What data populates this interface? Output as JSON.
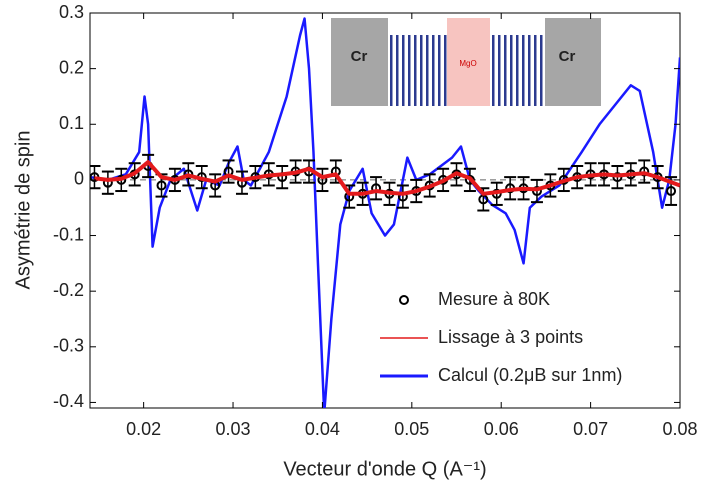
{
  "chart_data": {
    "type": "line",
    "xlabel": "Vecteur d'onde Q (A⁻¹)",
    "ylabel": "Asymétrie de spin",
    "xlim": [
      0.014,
      0.08
    ],
    "ylim": [
      -0.41,
      0.3
    ],
    "xticks": [
      0.02,
      0.03,
      0.04,
      0.05,
      0.06,
      0.07,
      0.08
    ],
    "yticks": [
      0.3,
      0.2,
      0.1,
      0,
      -0.1,
      -0.2,
      -0.3,
      -0.4
    ],
    "hline": 0,
    "legend": "lower right",
    "inset_labels": [
      "Cr",
      "MgO",
      "Cr"
    ],
    "series": [
      {
        "name": "Mesure à 80K",
        "kind": "errorbar",
        "color": "#000000",
        "x": [
          0.0145,
          0.016,
          0.0175,
          0.019,
          0.0205,
          0.022,
          0.0235,
          0.025,
          0.0265,
          0.028,
          0.0295,
          0.031,
          0.0325,
          0.034,
          0.0355,
          0.037,
          0.0385,
          0.04,
          0.0415,
          0.043,
          0.0445,
          0.046,
          0.0475,
          0.049,
          0.0505,
          0.052,
          0.0535,
          0.055,
          0.0565,
          0.058,
          0.0595,
          0.061,
          0.0625,
          0.064,
          0.0655,
          0.067,
          0.0685,
          0.07,
          0.0715,
          0.073,
          0.0745,
          0.076,
          0.0775,
          0.079
        ],
        "values": [
          0.005,
          -0.005,
          0.0,
          0.01,
          0.025,
          -0.01,
          0.0,
          0.01,
          0.005,
          -0.01,
          0.015,
          -0.005,
          0.005,
          0.01,
          0.005,
          0.015,
          0.015,
          0.0,
          0.015,
          -0.03,
          -0.025,
          -0.015,
          -0.025,
          -0.03,
          -0.02,
          -0.01,
          0.0,
          0.01,
          0.0,
          -0.035,
          -0.025,
          -0.015,
          -0.015,
          -0.02,
          -0.01,
          0.0,
          0.005,
          0.01,
          0.01,
          0.005,
          0.01,
          0.015,
          0.005,
          -0.02
        ],
        "errors": [
          0.02,
          0.02,
          0.02,
          0.02,
          0.02,
          0.02,
          0.02,
          0.02,
          0.02,
          0.02,
          0.02,
          0.02,
          0.02,
          0.02,
          0.02,
          0.02,
          0.02,
          0.02,
          0.02,
          0.02,
          0.02,
          0.02,
          0.02,
          0.02,
          0.02,
          0.02,
          0.02,
          0.02,
          0.02,
          0.02,
          0.02,
          0.02,
          0.02,
          0.02,
          0.02,
          0.02,
          0.02,
          0.02,
          0.02,
          0.02,
          0.02,
          0.02,
          0.02,
          0.025
        ]
      },
      {
        "name": "Lissage à 3 points",
        "kind": "line",
        "color": "#e41a1c",
        "x": [
          0.0145,
          0.016,
          0.0175,
          0.019,
          0.0205,
          0.022,
          0.0235,
          0.025,
          0.0265,
          0.028,
          0.0295,
          0.031,
          0.0325,
          0.034,
          0.0355,
          0.037,
          0.0385,
          0.04,
          0.0415,
          0.043,
          0.0445,
          0.046,
          0.0475,
          0.049,
          0.0505,
          0.052,
          0.0535,
          0.055,
          0.0565,
          0.058,
          0.0595,
          0.061,
          0.0625,
          0.064,
          0.0655,
          0.067,
          0.0685,
          0.07,
          0.0715,
          0.073,
          0.0745,
          0.076,
          0.0775,
          0.08
        ],
        "values": [
          0.003,
          0.0,
          0.002,
          0.012,
          0.032,
          0.005,
          0.0,
          0.008,
          0.002,
          -0.003,
          0.008,
          0.0,
          0.004,
          0.008,
          0.01,
          0.013,
          0.02,
          0.005,
          0.01,
          -0.025,
          -0.025,
          -0.02,
          -0.023,
          -0.025,
          -0.02,
          -0.012,
          -0.002,
          0.012,
          0.003,
          -0.025,
          -0.022,
          -0.018,
          -0.016,
          -0.017,
          -0.01,
          -0.002,
          0.005,
          0.008,
          0.01,
          0.008,
          0.01,
          0.012,
          0.005,
          -0.01
        ]
      },
      {
        "name": "Calcul (0.2μB sur 1nm)",
        "kind": "line",
        "color": "#1a1aff",
        "x": [
          0.014,
          0.016,
          0.018,
          0.0195,
          0.0201,
          0.0205,
          0.021,
          0.0218,
          0.023,
          0.0245,
          0.0255,
          0.026,
          0.027,
          0.0285,
          0.0295,
          0.0305,
          0.0312,
          0.032,
          0.034,
          0.036,
          0.0375,
          0.038,
          0.0385,
          0.039,
          0.0395,
          0.0402,
          0.041,
          0.042,
          0.043,
          0.0445,
          0.0455,
          0.047,
          0.048,
          0.049,
          0.0495,
          0.0505,
          0.052,
          0.0545,
          0.0555,
          0.0565,
          0.0575,
          0.059,
          0.0605,
          0.0615,
          0.0625,
          0.0632,
          0.0645,
          0.0665,
          0.069,
          0.071,
          0.073,
          0.0745,
          0.0755,
          0.077,
          0.078,
          0.0788,
          0.0795,
          0.08
        ],
        "values": [
          0.005,
          0.0,
          0.01,
          0.05,
          0.15,
          0.1,
          -0.12,
          -0.05,
          0.0,
          0.02,
          -0.03,
          -0.055,
          0.0,
          -0.01,
          0.03,
          0.06,
          0.0,
          -0.01,
          0.05,
          0.15,
          0.26,
          0.29,
          0.2,
          0.05,
          -0.15,
          -0.42,
          -0.25,
          -0.08,
          -0.02,
          0.02,
          -0.06,
          -0.1,
          -0.08,
          0.0,
          0.04,
          0.0,
          0.01,
          0.04,
          0.06,
          0.0,
          -0.02,
          -0.045,
          -0.06,
          -0.09,
          -0.15,
          -0.05,
          -0.03,
          -0.01,
          0.05,
          0.1,
          0.14,
          0.17,
          0.16,
          0.05,
          -0.05,
          0.0,
          0.1,
          0.22
        ]
      }
    ]
  }
}
